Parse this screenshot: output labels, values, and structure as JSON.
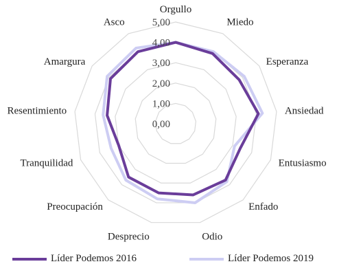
{
  "chart_data": {
    "type": "radar",
    "title": "",
    "axes": [
      "Orgullo",
      "Miedo",
      "Esperanza",
      "Ansiedad",
      "Entusiasmo",
      "Enfado",
      "Odio",
      "Desprecio",
      "Preocupación",
      "Tranquilidad",
      "Resentimiento",
      "Amargura",
      "Asco"
    ],
    "rlim": [
      0,
      5
    ],
    "ticks": [
      "0,00",
      "1,00",
      "2,00",
      "3,00",
      "4,00",
      "5,00"
    ],
    "grid": true,
    "legend_position": "bottom",
    "series": [
      {
        "name": "Líder Podemos  2016",
        "color": "#6a3d9a",
        "values": [
          4.0,
          3.9,
          3.8,
          4.1,
          3.4,
          3.7,
          3.6,
          3.5,
          3.5,
          3.0,
          3.4,
          3.9,
          4.0
        ]
      },
      {
        "name": "Líder Podemos  2019",
        "color": "#cdcdf3",
        "values": [
          4.0,
          4.0,
          4.1,
          4.3,
          3.1,
          3.8,
          4.0,
          3.8,
          3.7,
          3.4,
          3.6,
          4.1,
          4.2
        ]
      }
    ]
  }
}
